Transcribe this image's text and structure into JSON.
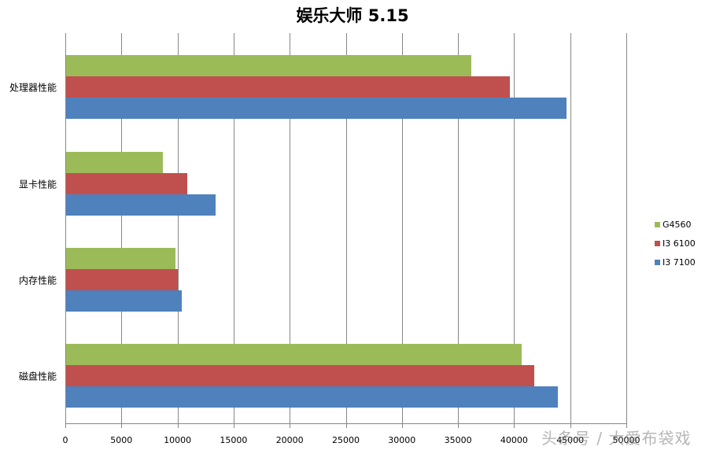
{
  "chart_data": {
    "type": "bar",
    "orientation": "horizontal",
    "title": "娱乐大师 5.15",
    "xlabel": "",
    "ylabel": "",
    "categories": [
      "处理器性能",
      "显卡性能",
      "内存性能",
      "磁盘性能"
    ],
    "series": [
      {
        "name": "G4560",
        "color": "#9BBB59",
        "values": [
          36200,
          8700,
          9800,
          40700
        ]
      },
      {
        "name": "I3 6100",
        "color": "#C0504D",
        "values": [
          39600,
          10900,
          10000,
          41800
        ]
      },
      {
        "name": "I3 7100",
        "color": "#4F81BD",
        "values": [
          44700,
          13400,
          10400,
          43900
        ]
      }
    ],
    "xlim": [
      0,
      50000
    ],
    "x_ticks": [
      "0",
      "5000",
      "10000",
      "15000",
      "20000",
      "25000",
      "30000",
      "35000",
      "40000",
      "45000",
      "50000"
    ],
    "grid": "vertical major gridlines",
    "legend_position": "right"
  },
  "watermark": "头条号 / 大爱布袋戏"
}
